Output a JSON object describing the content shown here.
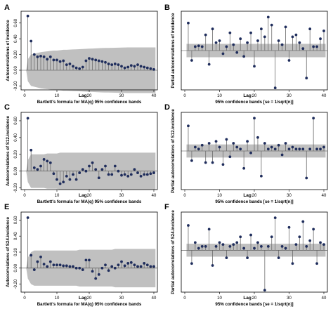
{
  "chart_data": [
    {
      "panel": "A",
      "type": "stem",
      "ylabel": "Autocorrelations of incidence",
      "xlabel": "Bartlett's formula for MA(q) 95% confidence bands",
      "lag_label": "Lag",
      "x": [
        1,
        2,
        3,
        4,
        5,
        6,
        7,
        8,
        9,
        10,
        11,
        12,
        13,
        14,
        15,
        16,
        17,
        18,
        19,
        20,
        21,
        22,
        23,
        24,
        25,
        26,
        27,
        28,
        29,
        30,
        31,
        32,
        33,
        34,
        35,
        36,
        37,
        38,
        39,
        40
      ],
      "values": [
        0.69,
        0.37,
        0.2,
        0.17,
        0.18,
        0.17,
        0.14,
        0.17,
        0.13,
        0.13,
        0.11,
        0.12,
        0.07,
        0.08,
        0.05,
        0.03,
        0.02,
        0.04,
        0.12,
        0.15,
        0.14,
        0.13,
        0.12,
        0.11,
        0.1,
        0.08,
        0.07,
        0.08,
        0.07,
        0.05,
        0.03,
        0.04,
        0.06,
        0.05,
        0.07,
        0.05,
        0.04,
        0.03,
        0.02,
        0.01
      ],
      "band_upper": [
        0.14,
        0.2,
        0.21,
        0.22,
        0.23,
        0.235,
        0.24,
        0.245,
        0.25,
        0.25,
        0.255,
        0.26,
        0.26,
        0.262,
        0.264,
        0.266,
        0.268,
        0.27,
        0.272,
        0.274,
        0.276,
        0.278,
        0.28,
        0.282,
        0.283,
        0.284,
        0.285,
        0.286,
        0.287,
        0.288,
        0.289,
        0.29,
        0.29,
        0.29,
        0.29,
        0.29,
        0.29,
        0.29,
        0.29,
        0.29
      ],
      "ylim": [
        -0.25,
        0.75
      ],
      "yticks": [
        -0.2,
        0.0,
        0.2,
        0.4,
        0.6
      ],
      "ytick_labels": [
        "-0.20",
        "0.00",
        "0.20",
        "0.40",
        "0.60"
      ],
      "xticks": [
        0,
        10,
        20,
        30,
        40
      ],
      "xtick_labels": [
        "0",
        "10",
        "20",
        "30",
        "40"
      ],
      "grid": false
    },
    {
      "panel": "B",
      "type": "stem",
      "ylabel": "Partial autocorrelations of incidence",
      "xlabel": "95% confidence bands [se = 1/sqrt(n)]",
      "lag_label": "Lag",
      "x": [
        1,
        2,
        3,
        4,
        5,
        6,
        7,
        8,
        9,
        10,
        11,
        12,
        13,
        14,
        15,
        16,
        17,
        18,
        19,
        20,
        21,
        22,
        23,
        24,
        25,
        26,
        27,
        28,
        29,
        30,
        31,
        32,
        33,
        34,
        35,
        36,
        37,
        38,
        39,
        40
      ],
      "values": [
        0.7,
        -0.25,
        0.1,
        0.12,
        0.1,
        0.4,
        -0.35,
        0.55,
        0.2,
        0.25,
        -0.08,
        0.1,
        0.45,
        0.15,
        -0.05,
        0.3,
        -0.15,
        0.2,
        0.45,
        -0.4,
        0.25,
        0.55,
        0.35,
        0.85,
        0.65,
        -0.95,
        0.25,
        0.15,
        0.6,
        -0.25,
        0.35,
        0.4,
        0.2,
        0.05,
        -0.7,
        0.55,
        0.1,
        0.1,
        0.3,
        0.5
      ],
      "band_upper": 0.17,
      "ylim": [
        -1.0,
        1.0
      ],
      "yticks": [],
      "ytick_labels": [],
      "xticks": [
        0,
        10,
        20,
        30,
        40
      ],
      "xtick_labels": [
        "0",
        "10",
        "20",
        "30",
        "40"
      ],
      "grid": false
    },
    {
      "panel": "C",
      "type": "stem",
      "ylabel": "Autocorrelations of S12.incidence",
      "xlabel": "Bartlett's formula for MA(q) 95% confidence bands",
      "lag_label": "Lag",
      "x": [
        1,
        2,
        3,
        4,
        5,
        6,
        7,
        8,
        9,
        10,
        11,
        12,
        13,
        14,
        15,
        16,
        17,
        18,
        19,
        20,
        21,
        22,
        23,
        24,
        25,
        26,
        27,
        28,
        29,
        30,
        31,
        32,
        33,
        34,
        35,
        36,
        37,
        38,
        39,
        40
      ],
      "values": [
        0.63,
        0.25,
        0.04,
        0.02,
        0.06,
        0.14,
        0.12,
        0.1,
        -0.03,
        -0.1,
        -0.15,
        -0.13,
        -0.06,
        -0.1,
        -0.04,
        -0.1,
        -0.02,
        0.02,
        0.0,
        0.06,
        0.1,
        0.02,
        -0.08,
        0.02,
        0.06,
        -0.04,
        -0.04,
        0.06,
        0.0,
        -0.05,
        -0.04,
        -0.06,
        -0.04,
        0.02,
        -0.02,
        -0.06,
        -0.04,
        -0.04,
        -0.03,
        -0.02
      ],
      "band_upper": [
        0.13,
        0.2,
        0.2,
        0.2,
        0.2,
        0.2,
        0.21,
        0.21,
        0.21,
        0.21,
        0.22,
        0.22,
        0.22,
        0.22,
        0.22,
        0.22,
        0.22,
        0.22,
        0.22,
        0.22,
        0.22,
        0.22,
        0.22,
        0.22,
        0.22,
        0.22,
        0.22,
        0.22,
        0.22,
        0.22,
        0.22,
        0.22,
        0.22,
        0.22,
        0.22,
        0.22,
        0.22,
        0.22,
        0.22,
        0.22
      ],
      "ylim": [
        -0.22,
        0.7
      ],
      "yticks": [
        -0.2,
        0.0,
        0.2,
        0.4,
        0.6
      ],
      "ytick_labels": [
        "-0.20",
        "0.00",
        "0.20",
        "0.40",
        "0.60"
      ],
      "xticks": [
        0,
        10,
        20,
        30,
        40
      ],
      "xtick_labels": [
        "0",
        "10",
        "20",
        "30",
        "40"
      ],
      "grid": false
    },
    {
      "panel": "D",
      "type": "stem",
      "ylabel": "Partial autocorrelations of S12.incidence",
      "xlabel": "95% confidence bands [se = 1/sqrt(n)]",
      "lag_label": "Lag",
      "x": [
        1,
        2,
        3,
        4,
        5,
        6,
        7,
        8,
        9,
        10,
        11,
        12,
        13,
        14,
        15,
        16,
        17,
        18,
        19,
        20,
        21,
        22,
        23,
        24,
        25,
        26,
        27,
        28,
        29,
        30,
        31,
        32,
        33,
        34,
        35,
        36,
        37,
        38,
        39,
        40
      ],
      "values": [
        0.65,
        -0.25,
        0.1,
        0.05,
        0.15,
        -0.3,
        0.2,
        -0.3,
        0.25,
        0.1,
        -0.35,
        0.3,
        -0.15,
        0.2,
        0.1,
        0.05,
        -0.45,
        0.25,
        -0.05,
        0.85,
        0.35,
        -0.65,
        0.2,
        0.05,
        0.1,
        0.05,
        0.15,
        -0.1,
        0.2,
        0.05,
        0.1,
        0.05,
        0.05,
        0.05,
        -0.7,
        0.05,
        0.85,
        0.05,
        0.05,
        0.1
      ],
      "band_upper": 0.17,
      "ylim": [
        -1.0,
        1.0
      ],
      "yticks": [],
      "ytick_labels": [],
      "xticks": [
        0,
        10,
        20,
        30,
        40
      ],
      "xtick_labels": [
        "0",
        "10",
        "20",
        "30",
        "40"
      ],
      "grid": false
    },
    {
      "panel": "E",
      "type": "stem",
      "ylabel": "Autocorrelations of S24.incidence",
      "xlabel": "Bartlett's formula for MA(q) 95% confidence bands",
      "lag_label": "Lag",
      "x": [
        1,
        2,
        3,
        4,
        5,
        6,
        7,
        8,
        9,
        10,
        11,
        12,
        13,
        14,
        15,
        16,
        17,
        18,
        19,
        20,
        21,
        22,
        23,
        24,
        25,
        26,
        27,
        28,
        29,
        30,
        31,
        32,
        33,
        34,
        35,
        36,
        37,
        38,
        39,
        40
      ],
      "values": [
        0.63,
        0.16,
        -0.02,
        0.08,
        0.14,
        0.05,
        0.02,
        0.08,
        0.04,
        0.04,
        0.04,
        0.03,
        0.03,
        0.02,
        0.02,
        0.0,
        0.0,
        -0.02,
        0.1,
        0.1,
        -0.04,
        -0.13,
        -0.08,
        0.0,
        0.04,
        -0.03,
        0.02,
        0.0,
        0.04,
        0.08,
        0.03,
        0.06,
        0.07,
        0.04,
        0.02,
        0.02,
        0.06,
        0.04,
        0.02,
        0.02
      ],
      "band_upper": [
        0.13,
        0.2,
        0.22,
        0.22,
        0.22,
        0.22,
        0.22,
        0.22,
        0.22,
        0.22,
        0.22,
        0.22,
        0.22,
        0.22,
        0.22,
        0.22,
        0.23,
        0.23,
        0.23,
        0.23,
        0.23,
        0.23,
        0.23,
        0.23,
        0.23,
        0.23,
        0.23,
        0.24,
        0.24,
        0.24,
        0.24,
        0.24,
        0.24,
        0.24,
        0.24,
        0.24,
        0.24,
        0.24,
        0.24,
        0.24
      ],
      "ylim": [
        -0.3,
        0.7
      ],
      "yticks": [
        -0.2,
        0.0,
        0.2,
        0.4,
        0.6
      ],
      "ytick_labels": [
        "-0.20",
        "0.00",
        "0.20",
        "0.40",
        "0.60"
      ],
      "xticks": [
        0,
        10,
        20,
        30,
        40
      ],
      "xtick_labels": [
        "0",
        "10",
        "20",
        "30",
        "40"
      ],
      "grid": false
    },
    {
      "panel": "F",
      "type": "stem",
      "ylabel": "Partial autocorrelations of S24.incidence",
      "xlabel": "95% confidence bands [se = 1/sqrt(n)]",
      "lag_label": "Lag",
      "x": [
        1,
        2,
        3,
        4,
        5,
        6,
        7,
        8,
        9,
        10,
        11,
        12,
        13,
        14,
        15,
        16,
        17,
        18,
        19,
        20,
        21,
        22,
        23,
        24,
        25,
        26,
        27,
        28,
        29,
        30,
        31,
        32,
        33,
        34,
        35,
        36,
        37,
        38,
        39,
        40
      ],
      "values": [
        0.65,
        -0.35,
        0.2,
        0.05,
        0.1,
        0.1,
        0.55,
        -0.4,
        0.1,
        0.2,
        0.15,
        -0.2,
        0.1,
        0.15,
        0.2,
        0.35,
        0.05,
        -0.2,
        0.4,
        0.05,
        0.2,
        0.1,
        -1.05,
        0.1,
        0.35,
        0.85,
        -0.2,
        0.1,
        0.05,
        0.6,
        -0.35,
        0.15,
        0.35,
        0.75,
        0.1,
        0.25,
        0.55,
        -0.35,
        0.2,
        0.15
      ],
      "band_upper": 0.17,
      "ylim": [
        -1.1,
        1.0
      ],
      "yticks": [],
      "ytick_labels": [],
      "xticks": [
        0,
        10,
        20,
        30,
        40
      ],
      "xtick_labels": [
        "0",
        "10",
        "20",
        "30",
        "40"
      ],
      "grid": false
    }
  ],
  "style": {
    "band_color": "#c0c0c0",
    "stem_color": "#6e6e6e",
    "marker_color": "#1f2d5c",
    "zero_line_color": "#444444"
  }
}
